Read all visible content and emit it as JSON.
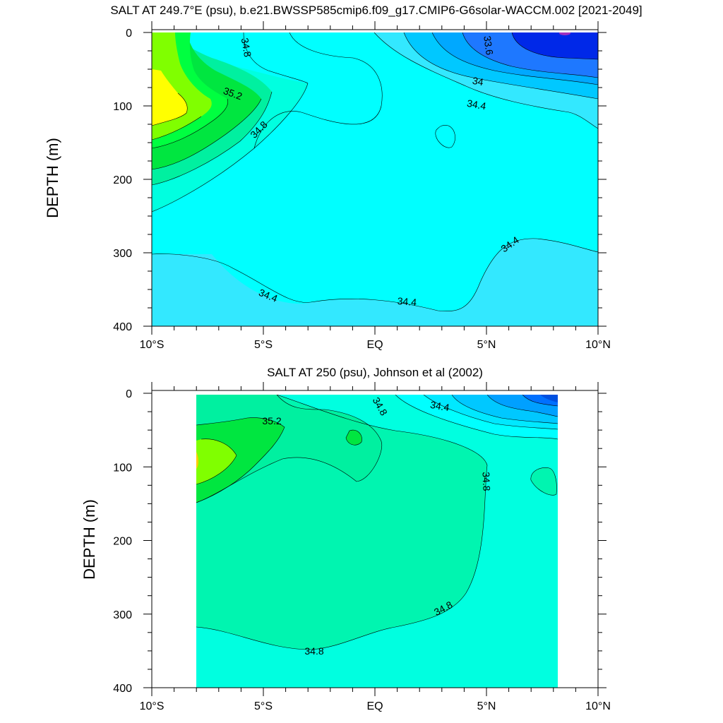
{
  "chart_data": [
    {
      "type": "contour",
      "title": "SALT AT 249.7°E (psu), b.e21.BWSSP585cmip6.f09_g17.CMIP6-G6solar-WACCM.002 [2021-2049]",
      "xlabel": "",
      "ylabel": "DEPTH (m)",
      "xlim": [
        -10,
        10
      ],
      "ylim": [
        400,
        0
      ],
      "x_tick_labels": [
        "10°S",
        "5°S",
        "EQ",
        "5°N",
        "10°N"
      ],
      "y_tick_labels": [
        "0",
        "100",
        "200",
        "300",
        "400"
      ],
      "colors": {
        "33.6": "#3050ff",
        "34.0": "#00c8ff",
        "34.4": "#33e8ff",
        "34.6": "#00ffff",
        "34.8": "#00ffe0",
        "35.0": "#00f0a0",
        "35.2": "#00e640",
        "35.4": "#80ff00",
        "35.6": "#ffff00",
        "33.2": "#0010e0"
      },
      "contour_labels": [
        "34.8",
        "33.6",
        "35.2",
        "34",
        "34.4",
        "34.8",
        "34.4",
        "34.4",
        "34.4"
      ]
    },
    {
      "type": "contour",
      "title": "SALT AT 250 (psu), Johnson et al (2002)",
      "xlabel": "",
      "ylabel": "DEPTH (m)",
      "xlim": [
        -10,
        10
      ],
      "ylim": [
        400,
        0
      ],
      "x_tick_labels": [
        "10°S",
        "5°S",
        "EQ",
        "5°N",
        "10°N"
      ],
      "y_tick_labels": [
        "0",
        "100",
        "200",
        "300",
        "400"
      ],
      "data_x_range": [
        -8,
        8.2
      ],
      "colors": {
        "34.8": "#00ffe0",
        "35.0": "#00f5a0",
        "35.2": "#00e640",
        "35.4": "#80ff00",
        "34.4": "#00ffff",
        "34.2": "#00c8ff",
        "33.8": "#0070ff"
      },
      "contour_labels": [
        "34.8",
        "35.2",
        "34.4",
        "34.8",
        "34.8",
        "34.8"
      ]
    }
  ]
}
